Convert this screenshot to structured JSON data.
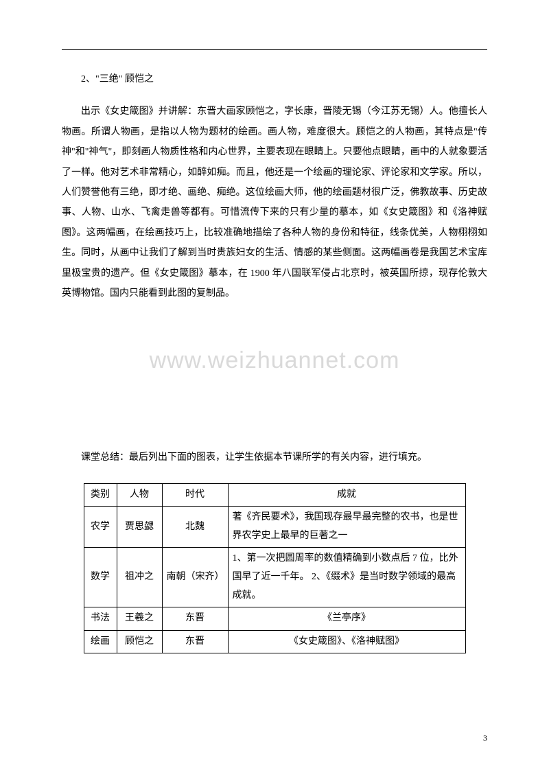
{
  "heading": "2、\"三绝\" 顾恺之",
  "paragraph": "出示《女史箴图》并讲解：东晋大画家顾恺之，字长康，晋陵无锡（今江苏无锡）人。他擅长人物画。所谓人物画，是指以人物为题材的绘画。画人物，难度很大。顾恺之的人物画，其特点是\"传神\"和\"神气\"，即刻画人物质性格和内心世界，主要表现在眼睛上。只要他点眼睛，画中的人就象要活了一样。他对艺术非常精心，如醉如痴。而且，他还是一个绘画的理论家、评论家和文学家。所以，人们赞誉他有三绝，即才绝、画绝、痴绝。这位绘画大师，他的绘画题材很广泛，佛教故事、历史故事、人物、山水、飞禽走兽等都有。可惜流传下来的只有少量的摹本，如《女史箴图》和《洛神赋图》。这两幅画，在绘画技巧上，比较准确地描绘了各种人物的身份和特征，线条优美，人物栩栩如生。同时，从画中让我们了解到当时贵族妇女的生活、情感的某些侧面。这两幅画卷是我国艺术宝库里极宝贵的遗产。但《女史箴图》摹本，在 1900 年八国联军侵占北京时，被英国所掠，现存伦敦大英博物馆。国内只能看到此图的复制品。",
  "watermark": "www.weizhuannet.com",
  "summary": "课堂总结：最后列出下面的图表，让学生依据本节课所学的有关内容，进行填充。",
  "table": {
    "headers": [
      "类别",
      "人物",
      "时代",
      "成就"
    ],
    "rows": [
      {
        "cat": "农学",
        "person": "贾思勰",
        "era": "北魏",
        "ach": "著《齐民要术》，我国现存最早最完整的农书，也是世界农学史上最早的巨著之一"
      },
      {
        "cat": "数学",
        "person": "祖冲之",
        "era": "南朝（宋齐）",
        "ach": "1、第一次把圆周率的数值精确到小数点后 7 位，比外国早了近一千年。\n2、《缀术》是当时数学领域的最高成就。"
      },
      {
        "cat": "书法",
        "person": "王羲之",
        "era": "东晋",
        "ach": "《兰亭序》",
        "center": true
      },
      {
        "cat": "绘画",
        "person": "顾恺之",
        "era": "东晋",
        "ach": "《女史箴图》、《洛神赋图》",
        "center": true
      }
    ]
  },
  "page_number": "3"
}
